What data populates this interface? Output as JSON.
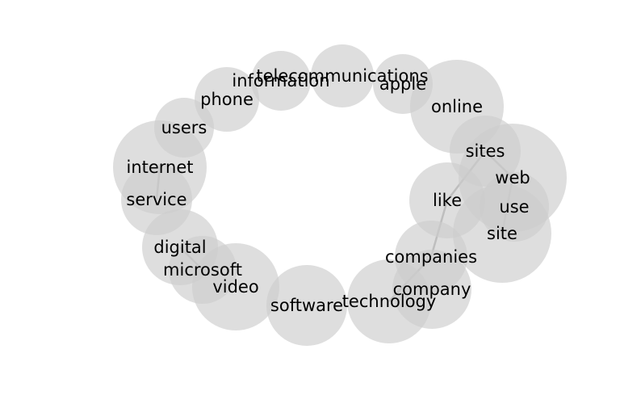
{
  "diagram": {
    "type": "word-network",
    "colors": {
      "node_fill": "#cccccc",
      "node_opacity": 0.65,
      "edge": "#999999",
      "label": "#000000"
    },
    "nodes": [
      {
        "id": "telecommunications",
        "label": "telecommunications"
      },
      {
        "id": "information",
        "label": "information"
      },
      {
        "id": "apple",
        "label": "apple"
      },
      {
        "id": "phone",
        "label": "phone"
      },
      {
        "id": "online",
        "label": "online"
      },
      {
        "id": "users",
        "label": "users"
      },
      {
        "id": "sites",
        "label": "sites"
      },
      {
        "id": "internet",
        "label": "internet"
      },
      {
        "id": "web",
        "label": "web"
      },
      {
        "id": "like",
        "label": "like"
      },
      {
        "id": "service",
        "label": "service"
      },
      {
        "id": "use",
        "label": "use"
      },
      {
        "id": "site",
        "label": "site"
      },
      {
        "id": "digital",
        "label": "digital"
      },
      {
        "id": "companies",
        "label": "companies"
      },
      {
        "id": "microsoft",
        "label": "microsoft"
      },
      {
        "id": "video",
        "label": "video"
      },
      {
        "id": "company",
        "label": "company"
      },
      {
        "id": "technology",
        "label": "technology"
      },
      {
        "id": "software",
        "label": "software"
      }
    ],
    "edges": [
      {
        "source": "internet",
        "target": "service"
      },
      {
        "source": "sites",
        "target": "like"
      },
      {
        "source": "sites",
        "target": "web"
      },
      {
        "source": "web",
        "target": "site"
      },
      {
        "source": "like",
        "target": "companies"
      },
      {
        "source": "companies",
        "target": "technology"
      },
      {
        "source": "digital",
        "target": "microsoft"
      }
    ]
  }
}
